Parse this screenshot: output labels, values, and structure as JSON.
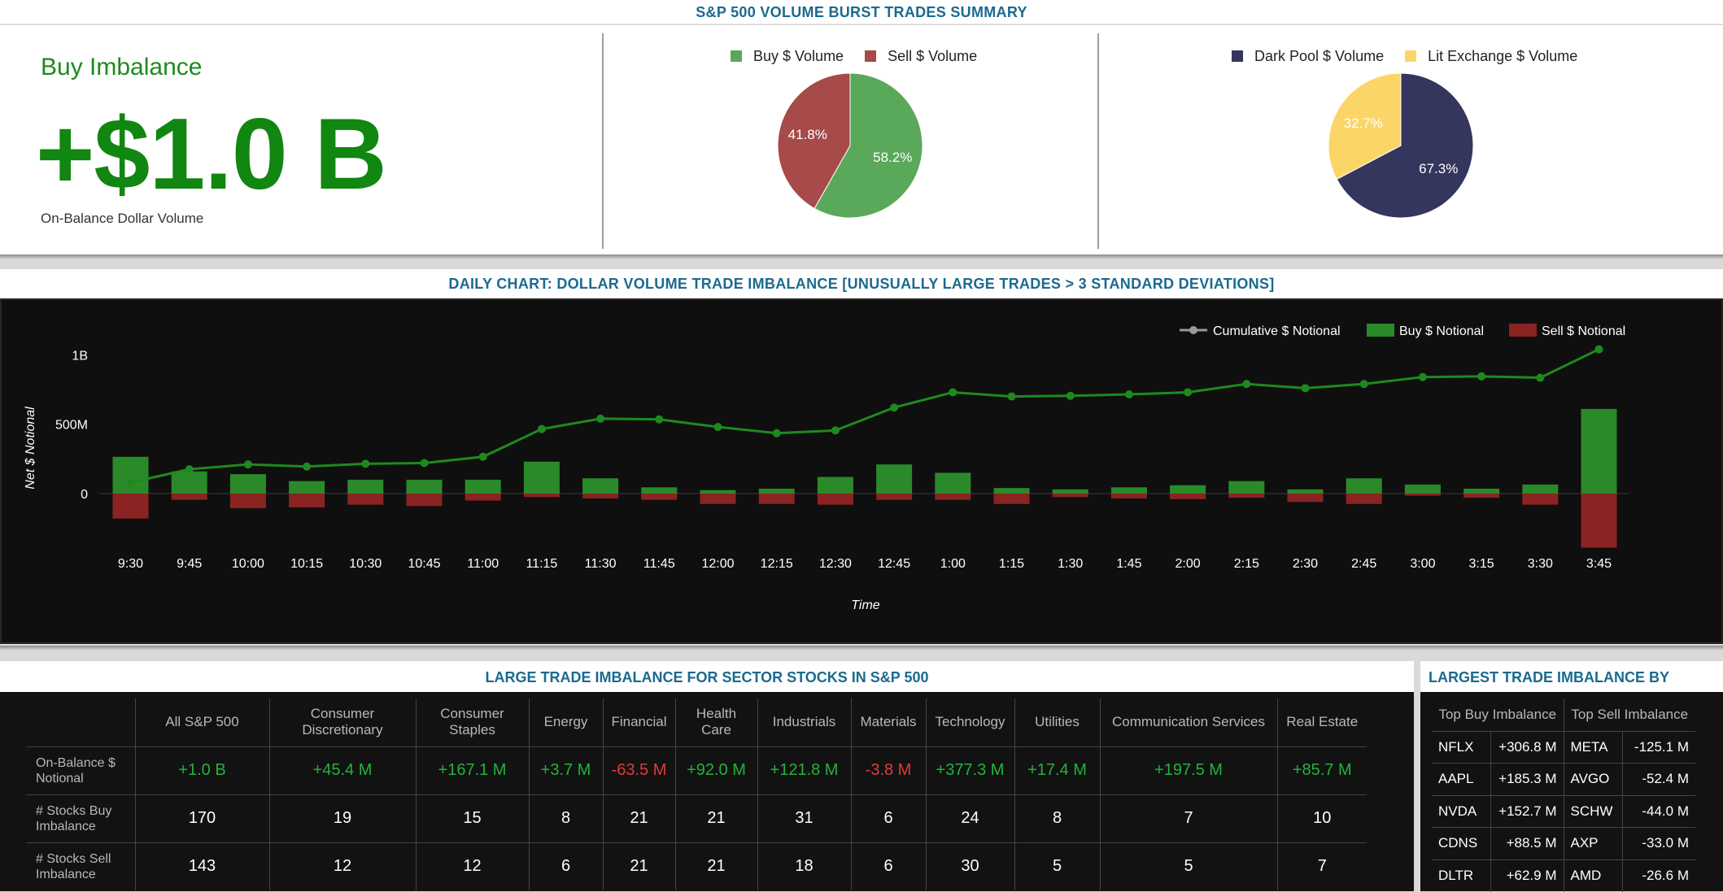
{
  "summary": {
    "title": "S&P 500 VOLUME BURST TRADES SUMMARY",
    "imbalance_label": "Buy Imbalance",
    "imbalance_value": "+$1.0 B",
    "imbalance_caption": "On-Balance Dollar Volume",
    "colors": {
      "buy": "#5aa95a",
      "sell": "#a64a4a",
      "dark_pool": "#35365e",
      "lit": "#fcd568",
      "value_green": "#118611"
    }
  },
  "chart_data": [
    {
      "type": "pie",
      "legend": [
        "Buy $ Volume",
        "Sell $ Volume"
      ],
      "slices": [
        {
          "name": "Buy $ Volume",
          "value": 58.2,
          "label": "58.2%"
        },
        {
          "name": "Sell $ Volume",
          "value": 41.8,
          "label": "41.8%"
        }
      ]
    },
    {
      "type": "pie",
      "legend": [
        "Dark Pool $ Volume",
        "Lit Exchange $ Volume"
      ],
      "slices": [
        {
          "name": "Dark Pool $ Volume",
          "value": 67.3,
          "label": "67.3%"
        },
        {
          "name": "Lit Exchange $ Volume",
          "value": 32.7,
          "label": "32.7%"
        }
      ]
    },
    {
      "type": "bar",
      "title": "DAILY CHART: DOLLAR VOLUME TRADE IMBALANCE [UNUSUALLY LARGE TRADES > 3 STANDARD DEVIATIONS]",
      "xlabel": "Time",
      "ylabel": "Net $ Notional",
      "y_ticks": [
        {
          "value": 0,
          "label": "0"
        },
        {
          "value": 500,
          "label": "500M"
        },
        {
          "value": 1000,
          "label": "1B"
        }
      ],
      "units": "M",
      "legend": [
        "Cumulative $ Notional",
        "Buy $ Notional",
        "Sell $ Notional"
      ],
      "legend_position": "top-right",
      "categories": [
        "9:30",
        "9:45",
        "10:00",
        "10:15",
        "10:30",
        "10:45",
        "11:00",
        "11:15",
        "11:30",
        "11:45",
        "12:00",
        "12:15",
        "12:30",
        "12:45",
        "1:00",
        "1:15",
        "1:30",
        "1:45",
        "2:00",
        "2:15",
        "2:30",
        "2:45",
        "3:00",
        "3:15",
        "3:30",
        "3:45"
      ],
      "series": [
        {
          "name": "Buy $ Notional",
          "kind": "bar",
          "color": "#2a8a2a",
          "values": [
            265,
            160,
            140,
            90,
            100,
            100,
            100,
            230,
            110,
            45,
            25,
            35,
            120,
            210,
            150,
            40,
            30,
            45,
            60,
            90,
            30,
            110,
            65,
            35,
            65,
            610
          ]
        },
        {
          "name": "Sell $ Notional",
          "kind": "bar",
          "color": "#8b2323",
          "values": [
            -180,
            -45,
            -105,
            -100,
            -80,
            -90,
            -50,
            -25,
            -35,
            -45,
            -75,
            -75,
            -80,
            -45,
            -45,
            -75,
            -25,
            -35,
            -40,
            -30,
            -60,
            -75,
            -15,
            -30,
            -80,
            -390
          ]
        },
        {
          "name": "Cumulative $ Notional",
          "kind": "line",
          "color": "#1e8a1e",
          "values": [
            80,
            175,
            210,
            195,
            215,
            220,
            265,
            465,
            540,
            535,
            480,
            435,
            455,
            620,
            730,
            700,
            705,
            715,
            730,
            790,
            760,
            790,
            840,
            845,
            835,
            1040
          ]
        }
      ]
    }
  ],
  "sector": {
    "title": "LARGE TRADE IMBALANCE FOR SECTOR STOCKS IN S&P 500",
    "columns": [
      "All S&P 500",
      "Consumer Discretionary",
      "Consumer Staples",
      "Energy",
      "Financial",
      "Health Care",
      "Industrials",
      "Materials",
      "Technology",
      "Utilities",
      "Communication Services",
      "Real Estate"
    ],
    "rows": [
      {
        "label": "On-Balance $ Notional",
        "values": [
          "+1.0 B",
          "+45.4 M",
          "+167.1 M",
          "+3.7 M",
          "-63.5 M",
          "+92.0 M",
          "+121.8 M",
          "-3.8 M",
          "+377.3 M",
          "+17.4 M",
          "+197.5 M",
          "+85.7 M"
        ]
      },
      {
        "label": "# Stocks Buy Imbalance",
        "values": [
          "170",
          "19",
          "15",
          "8",
          "21",
          "21",
          "31",
          "6",
          "24",
          "8",
          "7",
          "10"
        ]
      },
      {
        "label": "# Stocks Sell Imbalance",
        "values": [
          "143",
          "12",
          "12",
          "6",
          "21",
          "21",
          "18",
          "6",
          "30",
          "5",
          "5",
          "7"
        ]
      }
    ]
  },
  "stocks": {
    "title": "LARGEST TRADE IMBALANCE BY STOCK",
    "buy_header": "Top Buy Imbalance",
    "sell_header": "Top Sell Imbalance",
    "rows": [
      {
        "buy_sym": "NFLX",
        "buy_val": "+306.8 M",
        "sell_sym": "META",
        "sell_val": "-125.1 M"
      },
      {
        "buy_sym": "AAPL",
        "buy_val": "+185.3 M",
        "sell_sym": "AVGO",
        "sell_val": "-52.4 M"
      },
      {
        "buy_sym": "NVDA",
        "buy_val": "+152.7 M",
        "sell_sym": "SCHW",
        "sell_val": "-44.0 M"
      },
      {
        "buy_sym": "CDNS",
        "buy_val": "+88.5 M",
        "sell_sym": "AXP",
        "sell_val": "-33.0 M"
      },
      {
        "buy_sym": "DLTR",
        "buy_val": "+62.9 M",
        "sell_sym": "AMD",
        "sell_val": "-26.6 M"
      }
    ]
  }
}
